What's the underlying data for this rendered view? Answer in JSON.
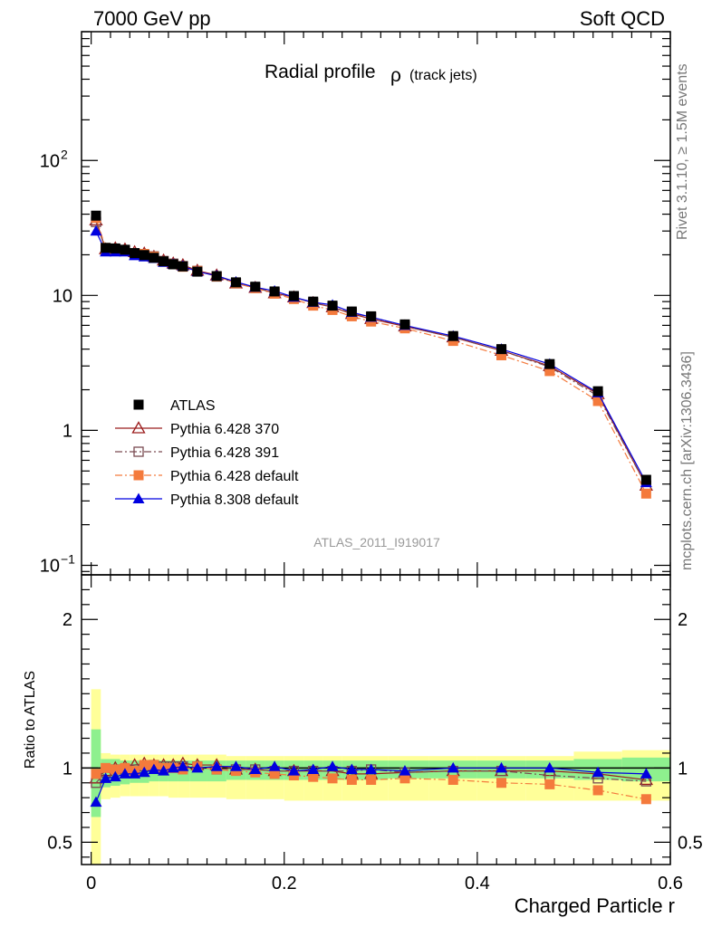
{
  "header": {
    "left": "7000 GeV pp",
    "right": "Soft QCD"
  },
  "side_labels": {
    "rivet": "Rivet 3.1.10, ≥ 1.5M events",
    "mcplots": "mcplots.cern.ch [arXiv:1306.3436]"
  },
  "chart_data": {
    "type": "line",
    "title": "Radial profile",
    "title_symbol": "ρ",
    "title_suffix": "(track jets)",
    "analysis_label": "ATLAS_2011_I919017",
    "xlabel": "Charged Particle r",
    "ylabel": "",
    "xlim": [
      -0.01,
      0.6
    ],
    "x_ticks": [
      "0",
      "0.2",
      "0.4",
      "0.6"
    ],
    "log_y": true,
    "ylim": [
      0.085,
      900
    ],
    "y_ticks": [
      {
        "base": "10",
        "exp": "−1",
        "value": 0.1
      },
      {
        "base": "1",
        "exp": "",
        "value": 1
      },
      {
        "base": "10",
        "exp": "",
        "value": 10
      },
      {
        "base": "10",
        "exp": "2",
        "value": 100
      }
    ],
    "legend_position": "lower-left",
    "x": [
      0.005,
      0.015,
      0.025,
      0.035,
      0.045,
      0.055,
      0.065,
      0.075,
      0.085,
      0.095,
      0.11,
      0.13,
      0.15,
      0.17,
      0.19,
      0.21,
      0.23,
      0.25,
      0.27,
      0.29,
      0.325,
      0.375,
      0.425,
      0.475,
      0.525,
      0.575
    ],
    "series": [
      {
        "name": "ATLAS",
        "color": "#000000",
        "marker": "square-filled",
        "line": "none",
        "values": [
          39.0,
          22.5,
          22.3,
          21.8,
          20.6,
          19.9,
          19.0,
          17.9,
          17.0,
          16.4,
          15.0,
          13.9,
          12.5,
          11.6,
          10.7,
          9.9,
          9.0,
          8.4,
          7.6,
          7.0,
          6.1,
          5.0,
          4.0,
          3.1,
          1.95,
          0.43
        ]
      },
      {
        "name": "Pythia 6.428 370",
        "color": "#9b1c1c",
        "marker": "triangle-open",
        "line": "solid",
        "values": [
          36.0,
          22.0,
          22.4,
          22.0,
          21.0,
          20.5,
          19.4,
          18.2,
          17.3,
          16.8,
          15.3,
          14.1,
          12.3,
          11.4,
          10.4,
          9.7,
          8.8,
          8.2,
          7.3,
          6.7,
          5.9,
          4.9,
          3.9,
          3.0,
          1.86,
          0.39
        ]
      },
      {
        "name": "Pythia 6.428 391",
        "color": "#7a4a52",
        "marker": "square-open",
        "line": "dashdot",
        "values": [
          35.0,
          21.8,
          22.0,
          21.5,
          20.4,
          20.0,
          19.5,
          18.0,
          17.2,
          16.5,
          15.2,
          13.8,
          12.3,
          11.4,
          10.5,
          9.7,
          8.8,
          8.2,
          7.4,
          6.9,
          5.9,
          4.9,
          3.9,
          2.95,
          1.8,
          0.39
        ]
      },
      {
        "name": "Pythia 6.428 default",
        "color": "#f47a3c",
        "marker": "square-filled",
        "line": "dashdot",
        "values": [
          37.5,
          22.5,
          22.0,
          21.7,
          20.2,
          20.3,
          19.4,
          17.9,
          17.0,
          16.3,
          15.2,
          13.8,
          12.3,
          11.3,
          10.3,
          9.4,
          8.4,
          7.8,
          7.0,
          6.4,
          5.7,
          4.6,
          3.6,
          2.75,
          1.65,
          0.34
        ]
      },
      {
        "name": "Pythia 8.308 default",
        "color": "#0000e0",
        "marker": "triangle-filled",
        "line": "solid",
        "values": [
          30.0,
          21.0,
          21.0,
          21.0,
          19.7,
          19.3,
          18.8,
          17.6,
          17.0,
          16.5,
          15.0,
          14.0,
          12.6,
          11.5,
          10.8,
          9.7,
          8.9,
          8.5,
          7.5,
          6.9,
          6.0,
          5.0,
          4.0,
          3.1,
          1.9,
          0.41
        ]
      }
    ],
    "ratio": {
      "ylabel": "Ratio to ATLAS",
      "ylim": [
        0.35,
        2.3
      ],
      "y_ticks": [
        "0.5",
        "1",
        "2"
      ],
      "band_inner": {
        "color": "#8ef08e",
        "upper": [
          1.26,
          1.06,
          1.06,
          1.05,
          1.05,
          1.05,
          1.05,
          1.05,
          1.05,
          1.05,
          1.05,
          1.05,
          1.05,
          1.05,
          1.05,
          1.05,
          1.05,
          1.05,
          1.05,
          1.05,
          1.05,
          1.05,
          1.05,
          1.05,
          1.06,
          1.07
        ],
        "lower": [
          0.67,
          0.87,
          0.88,
          0.89,
          0.9,
          0.9,
          0.91,
          0.91,
          0.91,
          0.91,
          0.91,
          0.91,
          0.92,
          0.92,
          0.92,
          0.92,
          0.92,
          0.92,
          0.92,
          0.92,
          0.93,
          0.93,
          0.93,
          0.93,
          0.92,
          0.91
        ]
      },
      "band_outer": {
        "color": "#ffff99",
        "upper": [
          1.53,
          1.1,
          1.09,
          1.09,
          1.09,
          1.09,
          1.09,
          1.09,
          1.09,
          1.09,
          1.09,
          1.09,
          1.08,
          1.08,
          1.08,
          1.08,
          1.08,
          1.08,
          1.08,
          1.08,
          1.08,
          1.08,
          1.08,
          1.08,
          1.11,
          1.12
        ],
        "lower": [
          0.35,
          0.79,
          0.8,
          0.81,
          0.81,
          0.81,
          0.81,
          0.81,
          0.8,
          0.8,
          0.8,
          0.8,
          0.79,
          0.79,
          0.79,
          0.78,
          0.78,
          0.78,
          0.78,
          0.78,
          0.78,
          0.78,
          0.78,
          0.78,
          0.78,
          0.78
        ]
      },
      "series": [
        {
          "color": "#9b1c1c",
          "marker": "triangle-open",
          "line": "solid",
          "values": [
            0.93,
            0.98,
            1.0,
            1.01,
            1.02,
            1.03,
            1.02,
            1.02,
            1.02,
            1.03,
            1.02,
            1.02,
            0.99,
            0.99,
            0.98,
            0.98,
            0.98,
            0.98,
            0.96,
            0.96,
            0.97,
            0.98,
            0.98,
            0.98,
            0.96,
            0.92
          ]
        },
        {
          "color": "#7a4a52",
          "marker": "square-open",
          "line": "dashdot",
          "values": [
            0.9,
            0.97,
            0.99,
            0.99,
            0.99,
            1.01,
            1.02,
            1.01,
            1.01,
            1.01,
            1.01,
            0.99,
            0.99,
            0.99,
            0.98,
            0.98,
            0.98,
            0.98,
            0.98,
            0.99,
            0.97,
            0.98,
            0.98,
            0.95,
            0.93,
            0.91
          ]
        },
        {
          "color": "#f47a3c",
          "marker": "square-filled",
          "line": "dashdot",
          "values": [
            0.96,
            1.0,
            0.99,
            1.0,
            0.98,
            1.02,
            1.02,
            1.0,
            1.0,
            0.99,
            1.01,
            0.99,
            0.98,
            0.97,
            0.96,
            0.95,
            0.94,
            0.93,
            0.92,
            0.92,
            0.93,
            0.92,
            0.9,
            0.89,
            0.85,
            0.79
          ]
        },
        {
          "color": "#0000e0",
          "marker": "triangle-filled",
          "line": "solid",
          "values": [
            0.77,
            0.93,
            0.94,
            0.96,
            0.96,
            0.97,
            0.99,
            0.98,
            1.0,
            1.01,
            1.0,
            1.01,
            1.01,
            0.99,
            1.01,
            0.98,
            0.99,
            1.01,
            0.99,
            0.99,
            0.98,
            1.0,
            1.0,
            1.0,
            0.97,
            0.96
          ]
        }
      ]
    }
  }
}
